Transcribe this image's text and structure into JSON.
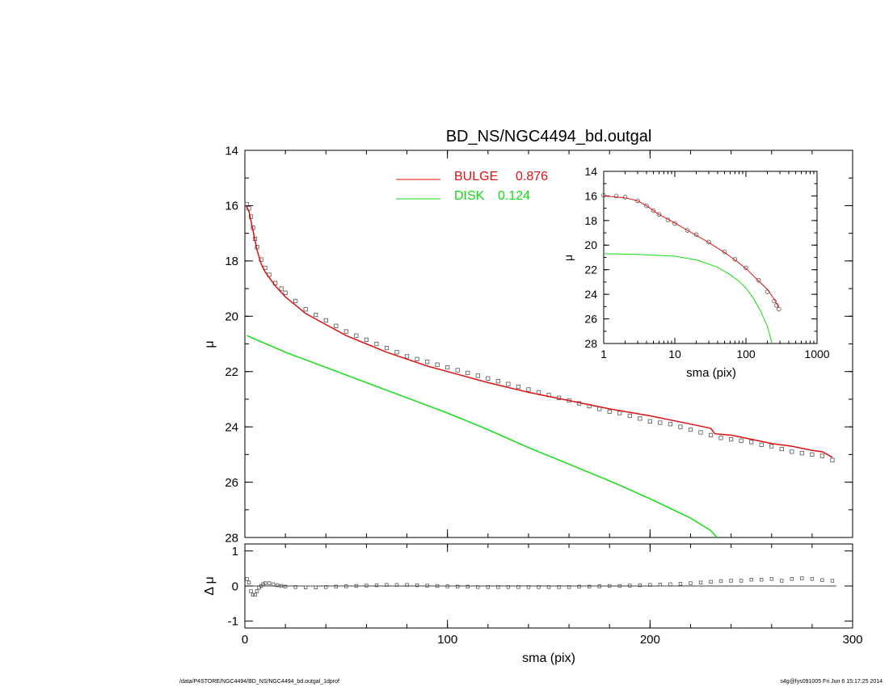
{
  "chart_data": [
    {
      "id": "main-profile",
      "type": "line",
      "title": "BD_NS/NGC4494_bd.outgal",
      "ylabel": "μ",
      "xlim": [
        0,
        300
      ],
      "ylim": [
        28,
        14
      ],
      "y_inverted": true,
      "yticks": [
        14,
        16,
        18,
        20,
        22,
        24,
        26,
        28
      ],
      "xticks": [
        0,
        100,
        200,
        300
      ],
      "legend": {
        "placement": "top-center",
        "entries": [
          {
            "label": "BULGE",
            "value": "0.876",
            "color": "#dd1111"
          },
          {
            "label": "DISK",
            "value": "0.124",
            "color": "#11dd11"
          }
        ]
      },
      "series": [
        {
          "name": "BULGE",
          "color": "#dd1111",
          "x": [
            0.5,
            2,
            4,
            6,
            8,
            10,
            12,
            15,
            20,
            25,
            30,
            40,
            50,
            60,
            70,
            80,
            90,
            100,
            120,
            140,
            160,
            180,
            200,
            220,
            230,
            232,
            240,
            250,
            260,
            270,
            280,
            285,
            290
          ],
          "y": [
            16.0,
            16.2,
            16.9,
            17.6,
            18.1,
            18.4,
            18.6,
            18.9,
            19.3,
            19.6,
            19.9,
            20.3,
            20.7,
            21.0,
            21.3,
            21.55,
            21.8,
            22.0,
            22.4,
            22.75,
            23.05,
            23.35,
            23.6,
            23.9,
            24.05,
            24.25,
            24.3,
            24.45,
            24.6,
            24.7,
            24.85,
            24.9,
            25.1
          ]
        },
        {
          "name": "DISK",
          "color": "#11dd11",
          "x": [
            1,
            20,
            40,
            60,
            80,
            100,
            120,
            140,
            160,
            180,
            200,
            220,
            230,
            233
          ],
          "y": [
            20.7,
            21.3,
            21.85,
            22.4,
            22.95,
            23.5,
            24.1,
            24.75,
            25.35,
            25.95,
            26.6,
            27.3,
            27.75,
            28.0
          ]
        },
        {
          "name": "data",
          "color": "#555555",
          "marker": "square",
          "x": [
            1,
            2,
            3,
            4,
            5,
            6,
            8,
            10,
            12,
            15,
            18,
            20,
            25,
            30,
            35,
            40,
            45,
            50,
            55,
            60,
            65,
            70,
            75,
            80,
            85,
            90,
            95,
            100,
            105,
            110,
            115,
            120,
            125,
            130,
            135,
            140,
            145,
            150,
            155,
            160,
            165,
            170,
            175,
            180,
            185,
            190,
            195,
            200,
            205,
            210,
            215,
            220,
            225,
            230,
            235,
            240,
            245,
            250,
            255,
            260,
            265,
            270,
            275,
            280,
            285,
            290
          ],
          "y": [
            15.95,
            16.1,
            16.4,
            16.8,
            17.2,
            17.5,
            17.95,
            18.25,
            18.5,
            18.8,
            19.0,
            19.15,
            19.45,
            19.75,
            19.95,
            20.15,
            20.35,
            20.55,
            20.7,
            20.85,
            21.0,
            21.15,
            21.3,
            21.45,
            21.55,
            21.65,
            21.75,
            21.85,
            21.95,
            22.05,
            22.15,
            22.25,
            22.35,
            22.45,
            22.55,
            22.65,
            22.75,
            22.85,
            22.95,
            23.05,
            23.15,
            23.25,
            23.35,
            23.45,
            23.5,
            23.6,
            23.7,
            23.8,
            23.85,
            23.9,
            24.0,
            24.1,
            24.2,
            24.3,
            24.4,
            24.45,
            24.5,
            24.55,
            24.65,
            24.7,
            24.8,
            24.9,
            24.95,
            25.0,
            25.05,
            25.2
          ]
        }
      ]
    },
    {
      "id": "residuals",
      "type": "scatter",
      "ylabel": "Δ μ",
      "xlabel": "sma (pix)",
      "xlim": [
        0,
        300
      ],
      "ylim": [
        -1.2,
        1.2
      ],
      "yticks": [
        1,
        0,
        -1
      ],
      "xticks": [
        0,
        100,
        200,
        300
      ],
      "series": [
        {
          "name": "residual",
          "color": "#555555",
          "marker": "square",
          "x": [
            1,
            2,
            3,
            4,
            5,
            6,
            7,
            8,
            9,
            10,
            12,
            14,
            16,
            18,
            20,
            25,
            30,
            35,
            40,
            45,
            50,
            55,
            60,
            65,
            70,
            75,
            80,
            85,
            90,
            95,
            100,
            105,
            110,
            115,
            120,
            125,
            130,
            135,
            140,
            145,
            150,
            155,
            160,
            165,
            170,
            175,
            180,
            185,
            190,
            195,
            200,
            205,
            210,
            215,
            220,
            225,
            230,
            235,
            240,
            245,
            250,
            255,
            260,
            265,
            270,
            275,
            280,
            285,
            290
          ],
          "y": [
            0.2,
            0.1,
            -0.15,
            -0.25,
            -0.25,
            -0.15,
            -0.05,
            0.0,
            0.05,
            0.08,
            0.08,
            0.05,
            0.02,
            0.0,
            -0.02,
            -0.03,
            -0.04,
            -0.04,
            -0.03,
            -0.02,
            -0.01,
            0.0,
            0.01,
            0.02,
            0.03,
            0.03,
            0.03,
            0.02,
            0.01,
            0.0,
            -0.01,
            -0.02,
            -0.02,
            -0.03,
            -0.03,
            -0.03,
            -0.03,
            -0.03,
            -0.03,
            -0.03,
            -0.03,
            -0.03,
            -0.03,
            -0.02,
            -0.02,
            -0.01,
            0.0,
            0.0,
            0.01,
            0.02,
            0.03,
            0.04,
            0.05,
            0.06,
            0.08,
            0.1,
            0.12,
            0.14,
            0.15,
            0.15,
            0.18,
            0.18,
            0.2,
            0.15,
            0.2,
            0.22,
            0.2,
            0.17,
            0.15
          ]
        },
        {
          "name": "zero",
          "color": "#000000",
          "x": [
            0,
            292
          ],
          "y": [
            0,
            0
          ]
        }
      ]
    },
    {
      "id": "inset-log",
      "type": "line",
      "xlabel": "sma (pix)",
      "ylabel": "μ",
      "xscale": "log",
      "xlim": [
        1,
        1000
      ],
      "ylim": [
        28,
        14
      ],
      "y_inverted": true,
      "yticks": [
        14,
        16,
        18,
        20,
        22,
        24,
        26,
        28
      ],
      "xticks": [
        1,
        10,
        100,
        1000
      ],
      "series": [
        {
          "name": "BULGE",
          "color": "#dd1111",
          "x": [
            1,
            2,
            3,
            4,
            5,
            6,
            8,
            10,
            15,
            20,
            30,
            50,
            70,
            100,
            150,
            200,
            250,
            290
          ],
          "y": [
            16.0,
            16.15,
            16.4,
            16.8,
            17.2,
            17.5,
            17.9,
            18.2,
            18.8,
            19.2,
            19.8,
            20.6,
            21.2,
            21.9,
            22.9,
            23.6,
            24.4,
            25.1
          ]
        },
        {
          "name": "DISK",
          "color": "#11dd11",
          "x": [
            1,
            3,
            10,
            20,
            40,
            60,
            80,
            100,
            130,
            160,
            200,
            233
          ],
          "y": [
            20.7,
            20.75,
            20.9,
            21.2,
            21.8,
            22.4,
            22.95,
            23.5,
            24.4,
            25.35,
            26.6,
            28.0
          ]
        },
        {
          "name": "data",
          "color": "#555555",
          "marker": "circle",
          "x": [
            1,
            1.5,
            2,
            3,
            4,
            5,
            6,
            8,
            10,
            15,
            20,
            30,
            50,
            70,
            100,
            150,
            200,
            250,
            270,
            290
          ],
          "y": [
            15.95,
            16.0,
            16.1,
            16.4,
            16.8,
            17.2,
            17.5,
            17.95,
            18.25,
            18.8,
            19.15,
            19.75,
            20.55,
            21.15,
            21.85,
            22.85,
            23.8,
            24.55,
            24.9,
            25.2
          ]
        }
      ]
    }
  ],
  "footer": {
    "left": "/data/P4STORE/NGC4494/BD_NS/NGC4494_bd.outgal_1dprof",
    "right": "s4g@fys091005  Fri Jun  6 15:17:25 2014"
  }
}
